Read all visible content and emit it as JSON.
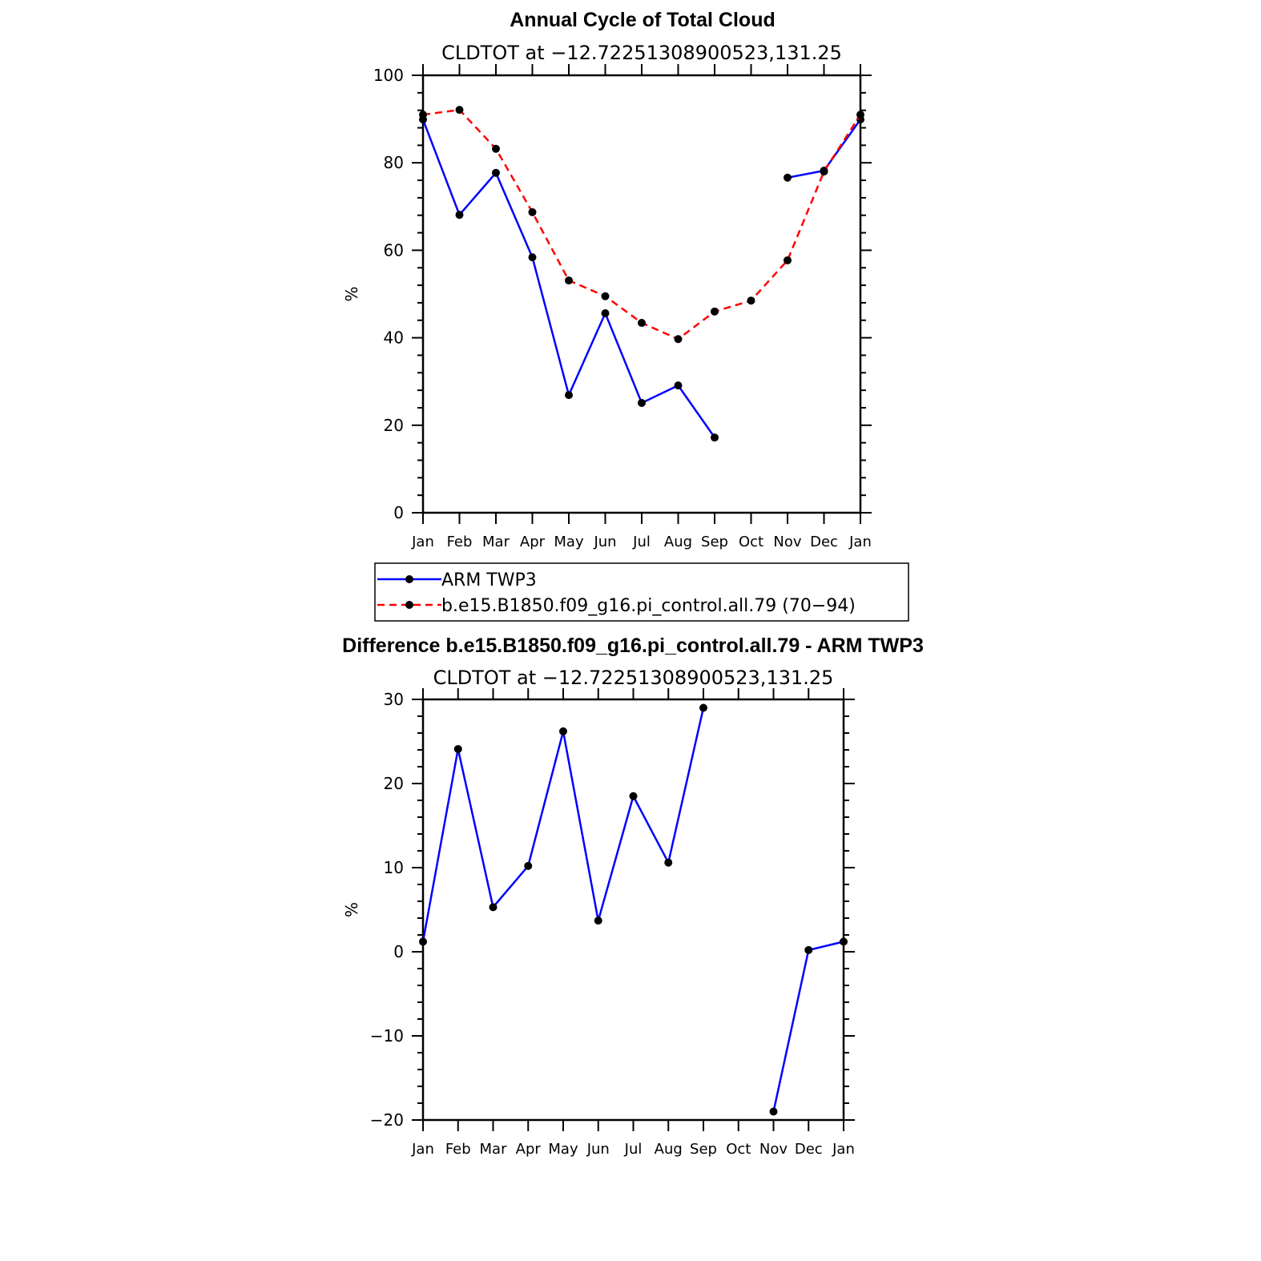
{
  "colors": {
    "obs": "#0000ff",
    "model": "#ff0000",
    "axis": "#000000"
  },
  "legend": {
    "entries": [
      "ARM TWP3",
      "b.e15.B1850.f09_g16.pi_control.all.79 (70−94)"
    ]
  },
  "chart_data": [
    {
      "type": "line",
      "title": "Annual Cycle of Total Cloud",
      "subtitle": "CLDTOT at −12.72251308900523,131.25",
      "xlabel": "",
      "ylabel": "%",
      "categories": [
        "Jan",
        "Feb",
        "Mar",
        "Apr",
        "May",
        "Jun",
        "Jul",
        "Aug",
        "Sep",
        "Oct",
        "Nov",
        "Dec",
        "Jan"
      ],
      "ylim": [
        0,
        100
      ],
      "yticks": [
        0,
        20,
        40,
        60,
        80,
        100
      ],
      "ytick_labels": [
        "0",
        "20",
        "40",
        "60",
        "80",
        "100"
      ],
      "minor_step": 4,
      "legend_position": "bottom",
      "series": [
        {
          "name": "ARM TWP3",
          "style": "solid",
          "color": "#0000ff",
          "values": [
            89.9,
            68.1,
            77.7,
            58.4,
            26.9,
            45.6,
            25.1,
            29.1,
            17.2,
            null,
            76.6,
            78.2,
            89.9
          ]
        },
        {
          "name": "b.e15.B1850.f09_g16.pi_control.all.79 (70−94)",
          "style": "dashed",
          "color": "#ff0000",
          "values": [
            91.0,
            92.1,
            83.2,
            68.7,
            53.1,
            49.5,
            43.4,
            39.7,
            46.0,
            48.5,
            57.7,
            78.0,
            91.0
          ]
        }
      ]
    },
    {
      "type": "line",
      "title": "Difference b.e15.B1850.f09_g16.pi_control.all.79 - ARM TWP3",
      "subtitle": "CLDTOT at −12.72251308900523,131.25",
      "xlabel": "",
      "ylabel": "%",
      "categories": [
        "Jan",
        "Feb",
        "Mar",
        "Apr",
        "May",
        "Jun",
        "Jul",
        "Aug",
        "Sep",
        "Oct",
        "Nov",
        "Dec",
        "Jan"
      ],
      "ylim": [
        -20,
        30
      ],
      "yticks": [
        -20,
        -10,
        0,
        10,
        20,
        30
      ],
      "ytick_labels": [
        "−20",
        "−10",
        "0",
        "10",
        "20",
        "30"
      ],
      "minor_step": 2,
      "series": [
        {
          "name": "Difference",
          "style": "solid",
          "color": "#0000ff",
          "values": [
            1.2,
            24.1,
            5.3,
            10.2,
            26.2,
            3.7,
            18.5,
            10.6,
            29.0,
            null,
            -19.0,
            0.2,
            1.2
          ]
        }
      ]
    }
  ]
}
